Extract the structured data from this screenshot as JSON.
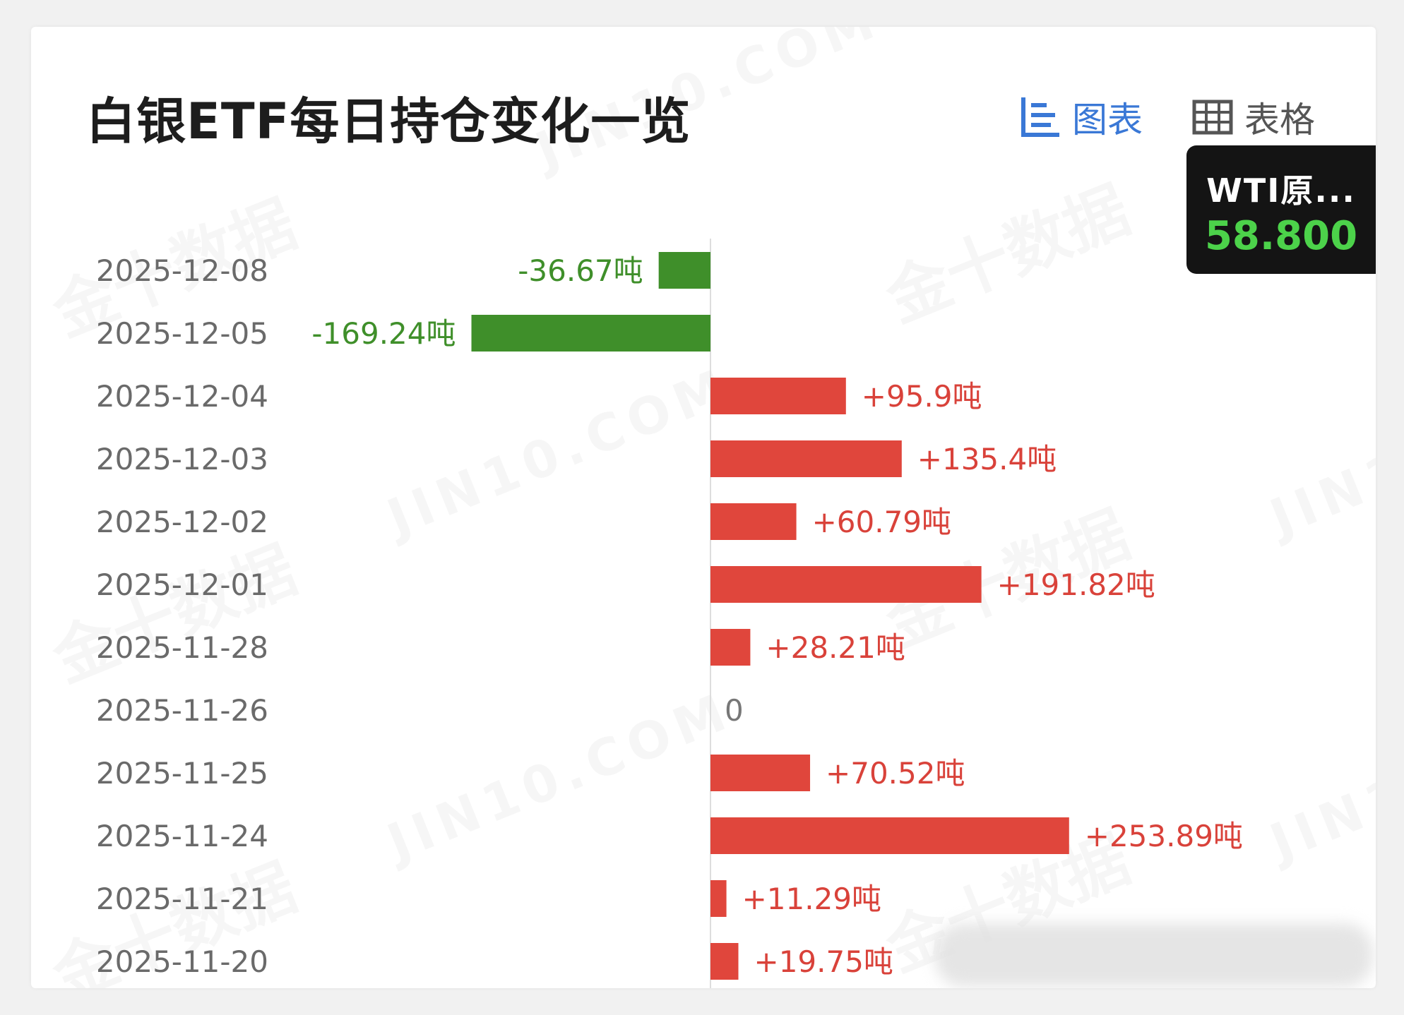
{
  "header": {
    "title": "白银ETF每日持仓变化一览",
    "tabs": [
      {
        "label": "图表",
        "icon": "bar-chart-icon",
        "active": true
      },
      {
        "label": "表格",
        "icon": "table-grid-icon",
        "active": false
      }
    ]
  },
  "tooltip": {
    "name": "WTI原...",
    "value": "58.800"
  },
  "watermarks": {
    "cn": "金十数据",
    "en": "JIN10.COM"
  },
  "colors": {
    "positive": "#e0463c",
    "negative": "#3f8f2a",
    "positive_text": "#d9423a",
    "negative_text": "#3f8f2a",
    "accent": "#3a78d6"
  },
  "chart_data": {
    "type": "bar",
    "orientation": "horizontal",
    "unit": "吨",
    "categories": [
      "2025-12-08",
      "2025-12-05",
      "2025-12-04",
      "2025-12-03",
      "2025-12-02",
      "2025-12-01",
      "2025-11-28",
      "2025-11-26",
      "2025-11-25",
      "2025-11-24",
      "2025-11-21",
      "2025-11-20"
    ],
    "values": [
      -36.67,
      -169.24,
      95.9,
      135.4,
      60.79,
      191.82,
      28.21,
      0,
      70.52,
      253.89,
      11.29,
      19.75
    ],
    "labels": [
      "-36.67吨",
      "-169.24吨",
      "+95.9吨",
      "+135.4吨",
      "+60.79吨",
      "+191.82吨",
      "+28.21吨",
      "0",
      "+70.52吨",
      "+253.89吨",
      "+11.29吨",
      "+19.75吨"
    ],
    "grid": false,
    "legend": "none"
  }
}
